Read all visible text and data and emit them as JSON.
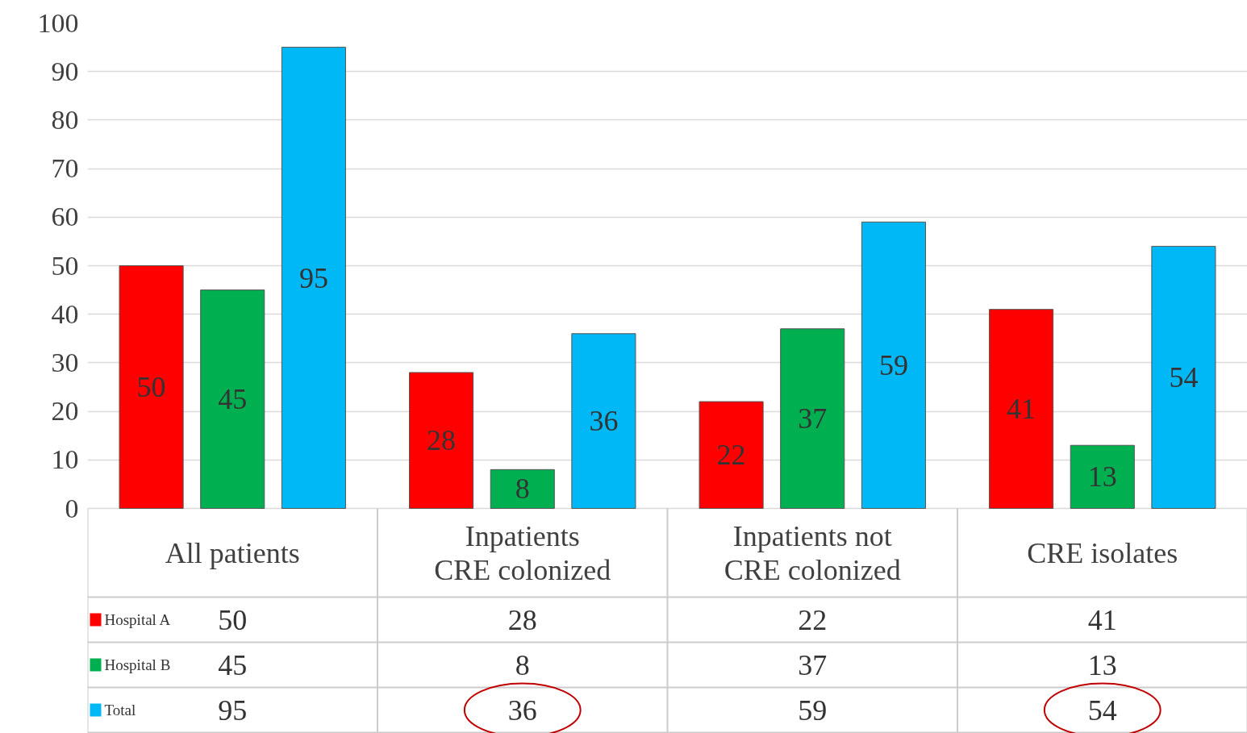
{
  "chart_data": {
    "type": "bar",
    "categories": [
      "All patients",
      "Inpatients CRE colonized",
      "Inpatients not CRE colonized",
      "CRE isolates"
    ],
    "series": [
      {
        "name": "Hospital A",
        "color": "#ff0000",
        "values": [
          50,
          28,
          22,
          41
        ],
        "value_labels": [
          "50",
          "28",
          "22",
          "41"
        ]
      },
      {
        "name": "Hospital B",
        "color": "#00b050",
        "values": [
          45,
          8,
          37,
          13
        ],
        "value_labels": [
          "45",
          "8",
          "37",
          "13"
        ]
      },
      {
        "name": "Total",
        "color": "#00b8f5",
        "values": [
          95,
          36,
          59,
          54
        ],
        "value_labels": [
          "95",
          "36",
          "59",
          "54"
        ]
      }
    ],
    "ylim": [
      0,
      100
    ],
    "yticks": [
      0,
      10,
      20,
      30,
      40,
      50,
      60,
      70,
      80,
      90,
      100
    ],
    "grid": "y",
    "data_labels": true,
    "legend": "bottom"
  }
}
